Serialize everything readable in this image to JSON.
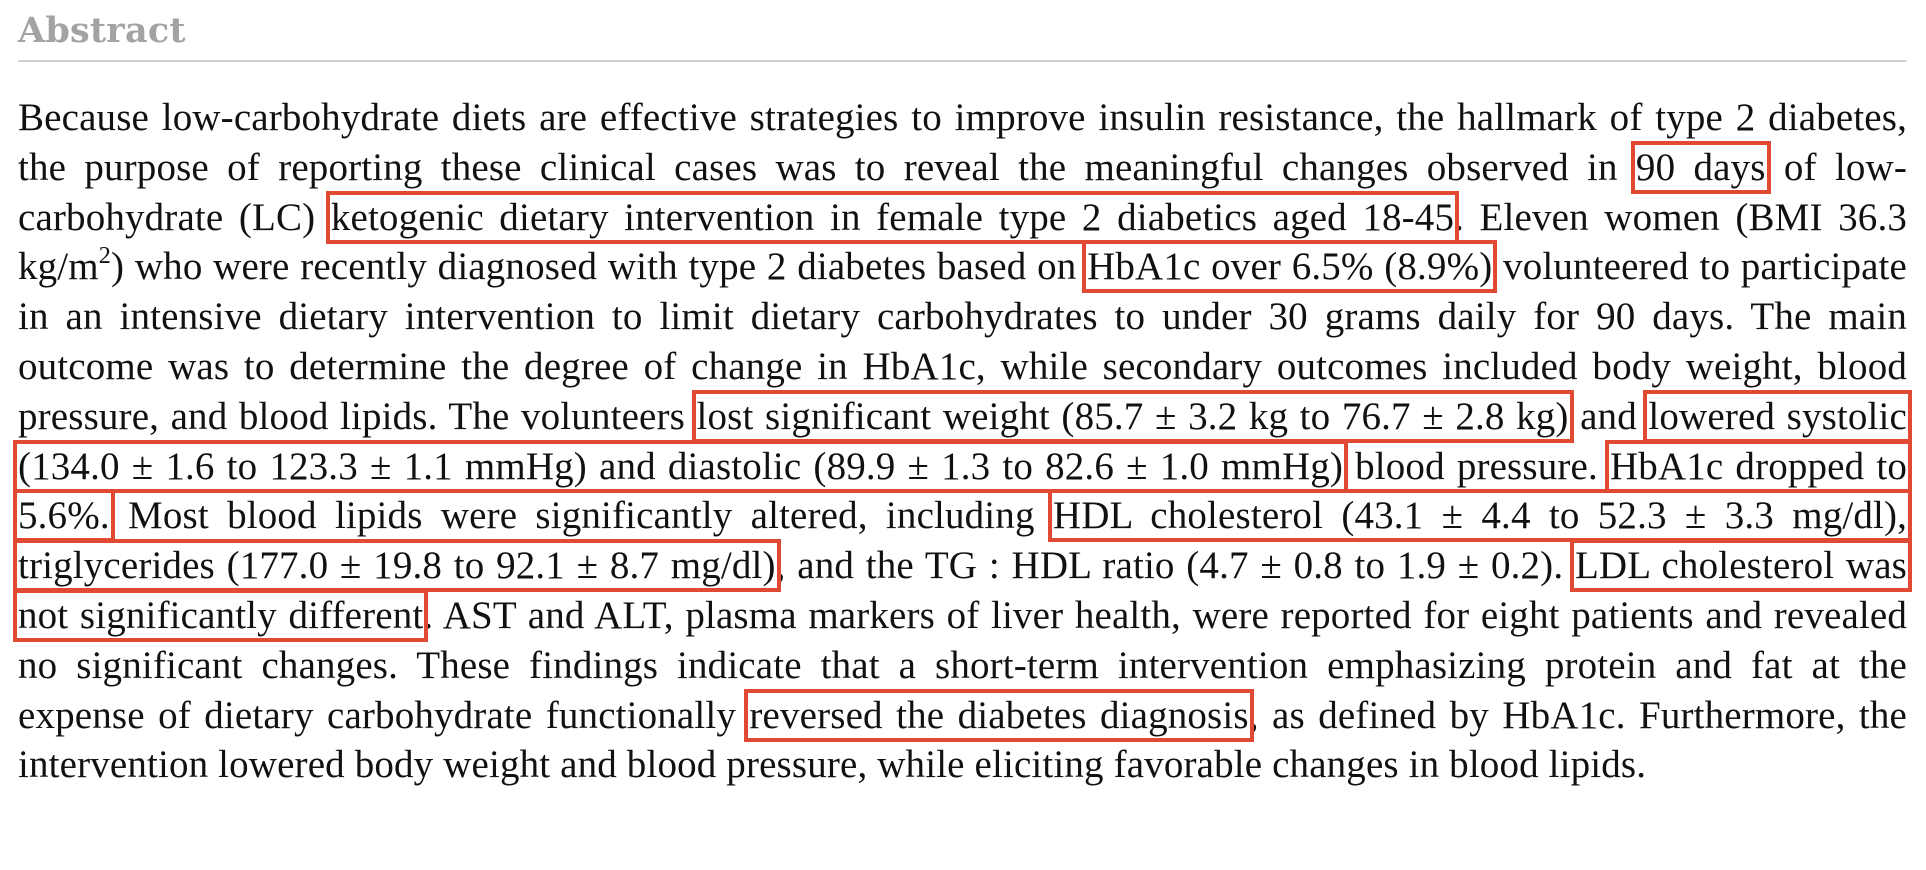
{
  "abstract": {
    "heading": "Abstract",
    "s01": "Because low-carbohydrate diets are effective strategies to improve insulin resistance, the hallmark of type 2 diabetes, the purpose of reporting these clinical cases was to reveal the meaningful changes observed in ",
    "h01": "90 days",
    "s02": " of low-carbohydrate (LC) ",
    "h02": "ketogenic dietary intervention in female type 2 diabetics aged 18-45",
    "s03": ". Eleven women (BMI 36.3 kg/m",
    "sup_exp": "2",
    "s04": ") who were recently diagnosed with type 2 diabetes based on ",
    "h03": "HbA1c over 6.5% (8.9%)",
    "s05": " volunteered to participate in an intensive dietary intervention to limit dietary carbohydrates to under 30 grams daily for 90 days. The main outcome was to determine the degree of change in HbA1c, while secondary outcomes included body weight, blood pressure, and blood lipids. The volunteers ",
    "h04": "lost significant weight (85.7 ± 3.2 kg to 76.7 ± 2.8 kg)",
    "s06": " and ",
    "h05": "lowered systolic (134.0 ± 1.6 to 123.3 ± 1.1 mmHg) and diastolic (89.9 ± 1.3 to 82.6 ± 1.0 mmHg)",
    "s07": " blood pressure. ",
    "h06": "HbA1c dropped to 5.6%.",
    "s08": " Most blood lipids were significantly altered, including ",
    "h07": "HDL cholesterol (43.1 ± 4.4 to 52.3 ± 3.3 mg/dl), triglycerides (177.0 ± 19.8 to 92.1 ± 8.7 mg/dl)",
    "s09": ", and the TG : HDL ratio (4.7 ± 0.8 to 1.9 ± 0.2). ",
    "h08": "LDL cholesterol was not significantly different",
    "s10": ". AST and ALT, plasma markers of liver health, were reported for eight patients and revealed no significant changes. These findings indicate that a short-term intervention emphasizing protein and fat at the expense of dietary carbohydrate functionally ",
    "h09": "reversed the diabetes diagnosis",
    "s11": ", as defined by HbA1c. Furthermore, the intervention lowered body weight and blood pressure, while eliciting favorable changes in blood lipids."
  },
  "colors": {
    "heading": "#a3a3a3",
    "rule": "#d2d2d2",
    "text": "#111111",
    "highlight_box": "#e04a32"
  }
}
